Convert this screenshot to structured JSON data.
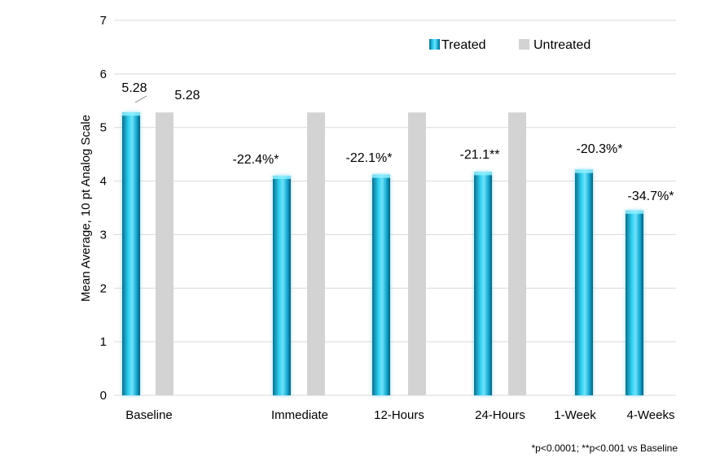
{
  "chart_data": {
    "type": "bar",
    "categories": [
      "Baseline",
      "Immediate",
      "12-Hours",
      "24-Hours",
      "1-Week",
      "4-Weeks"
    ],
    "ylabel": "Mean Average, 10 pt Analog Scale",
    "ylim": [
      0,
      7
    ],
    "yticks": [
      0,
      1,
      2,
      3,
      4,
      5,
      6,
      7
    ],
    "grid": true,
    "legend_position": "top-right",
    "series": [
      {
        "name": "Treated",
        "color": "#1ab0d8",
        "values": [
          5.28,
          4.1,
          4.12,
          4.17,
          4.21,
          3.45
        ],
        "labels": [
          "5.28",
          "-22.4%*",
          "-22.1%*",
          "-21.1**",
          "-20.3%*",
          "-34.7%*"
        ]
      },
      {
        "name": "Untreated",
        "color": "#d3d3d3",
        "values": [
          5.28,
          5.28,
          5.28,
          5.28,
          null,
          null
        ],
        "labels": [
          "5.28",
          "",
          "",
          "",
          "",
          ""
        ]
      }
    ],
    "footnote": "*p<0.0001; **p<0.001 vs Baseline"
  }
}
